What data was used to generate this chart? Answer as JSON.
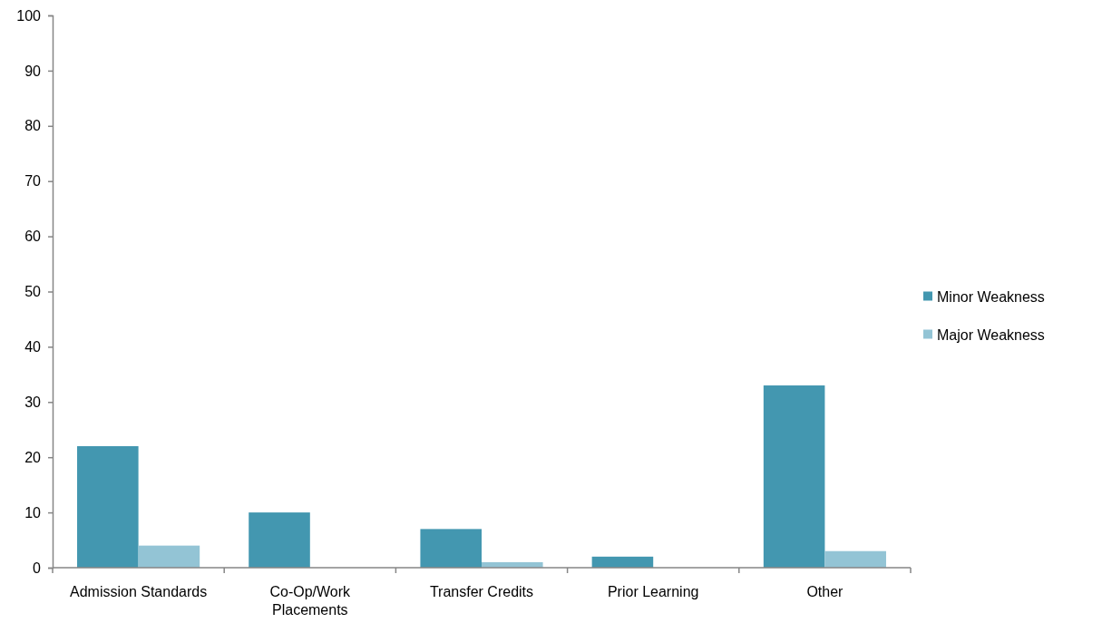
{
  "chart_data": {
    "type": "bar",
    "categories": [
      "Admission Standards",
      "Co-Op/Work Placements",
      "Transfer Credits",
      "Prior Learning",
      "Other"
    ],
    "series": [
      {
        "name": "Minor Weakness",
        "color": "#4397b0",
        "values": [
          22,
          10,
          7,
          2,
          33
        ]
      },
      {
        "name": "Major Weakness",
        "color": "#93c4d5",
        "values": [
          4,
          0,
          1,
          0,
          3
        ]
      }
    ],
    "ylim": [
      0,
      100
    ],
    "yticks": [
      0,
      10,
      20,
      30,
      40,
      50,
      60,
      70,
      80,
      90,
      100
    ],
    "legend": "right"
  }
}
